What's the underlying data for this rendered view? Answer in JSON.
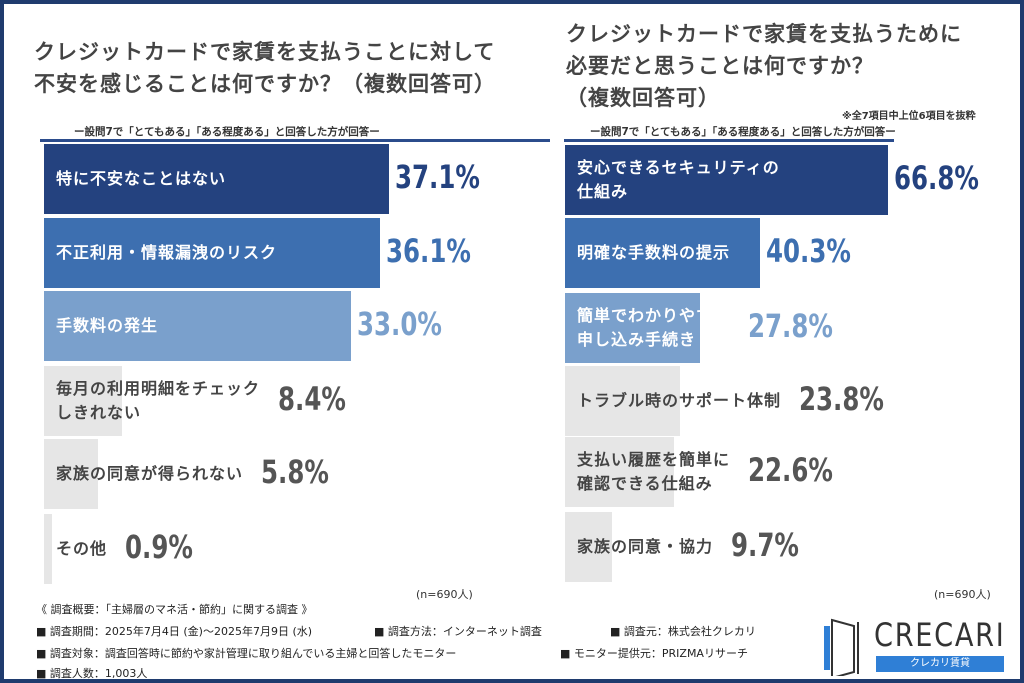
{
  "chart_data": [
    {
      "type": "bar",
      "orientation": "horizontal",
      "title": "クレジットカードで家賃を支払うことに対して不安を感じることは何ですか？（複数回答可）",
      "subtitle": "ー設問7で「とてもある」「ある程度ある」と回答した方が回答ー",
      "categories": [
        "特に不安なことはない",
        "不正利用・情報漏洩のリスク",
        "手数料の発生",
        "毎月の利用明細をチェックしきれない",
        "家族の同意が得られない",
        "その他"
      ],
      "values": [
        37.1,
        36.1,
        33.0,
        8.4,
        5.8,
        0.9
      ],
      "labels": [
        "37.1%",
        "36.1%",
        "33.0%",
        "8.4%",
        "5.8%",
        "0.9%"
      ],
      "sample": "(n=690人)"
    },
    {
      "type": "bar",
      "orientation": "horizontal",
      "title": "クレジットカードで家賃を支払うために必要だと思うことは何ですか？（複数回答可）",
      "title_lines": [
        "クレジットカードで家賃を支払うために",
        "必要だと思うことは何ですか？",
        "（複数回答可）"
      ],
      "note": "※全7項目中上位6項目を抜粋",
      "subtitle": "ー設問7で「とてもある」「ある程度ある」と回答した方が回答ー",
      "categories": [
        "安心できるセキュリティの仕組み",
        "明確な手数料の提示",
        "簡単でわかりやすい申し込み手続き",
        "トラブル時のサポート体制",
        "支払い履歴を簡単に確認できる仕組み",
        "家族の同意・協力"
      ],
      "values": [
        66.8,
        40.3,
        27.8,
        23.8,
        22.6,
        9.7
      ],
      "labels": [
        "66.8%",
        "40.3%",
        "27.8%",
        "23.8%",
        "22.6%",
        "9.7%"
      ],
      "sample": "(n=690人)"
    }
  ],
  "left_title_lines": [
    "クレジットカードで家賃を支払うことに対して",
    "不安を感じることは何ですか？（複数回答可）"
  ],
  "left_cat_lines": [
    [
      "特に不安なことはない"
    ],
    [
      "不正利用・情報漏洩のリスク"
    ],
    [
      "手数料の発生"
    ],
    [
      "毎月の利用明細をチェック",
      "しきれない"
    ],
    [
      "家族の同意が得られない"
    ],
    [
      "その他"
    ]
  ],
  "right_cat_lines": [
    [
      "安心できるセキュリティの",
      "仕組み"
    ],
    [
      "明確な手数料の提示"
    ],
    [
      "簡単でわかりやすい",
      "申し込み手続き"
    ],
    [
      "トラブル時のサポート体制"
    ],
    [
      "支払い履歴を簡単に",
      "確認できる仕組み"
    ],
    [
      "家族の同意・協力"
    ]
  ],
  "colors": {
    "bars": [
      "#24427f",
      "#3d6fb0",
      "#7aa0cc",
      "#e6e6e6",
      "#e6e6e6",
      "#e6e6e6"
    ],
    "values": [
      "#24427f",
      "#3d6fb0",
      "#7aa0cc",
      "#555555",
      "#555555",
      "#555555"
    ],
    "frame": "#1f3b6e"
  },
  "footer": {
    "overview": "《 調査概要：「主婦層のマネ活・節約」に関する調査 》",
    "period": "■ 調査期間：2025年7月4日 (金)～2025年7月9日 (水)",
    "method": "■ 調査方法：インターネット調査",
    "source": "■ 調査元：株式会社クレカリ",
    "target": "■ 調査対象：調査回答時に節約や家計管理に取り組んでいる主婦と回答したモニター",
    "provider": "■ モニター提供元：PRIZMAリサーチ",
    "count": "■ 調査人数：1,003人"
  },
  "logo": {
    "name": "CRECARI",
    "tagline": "クレカリ賃貸"
  }
}
